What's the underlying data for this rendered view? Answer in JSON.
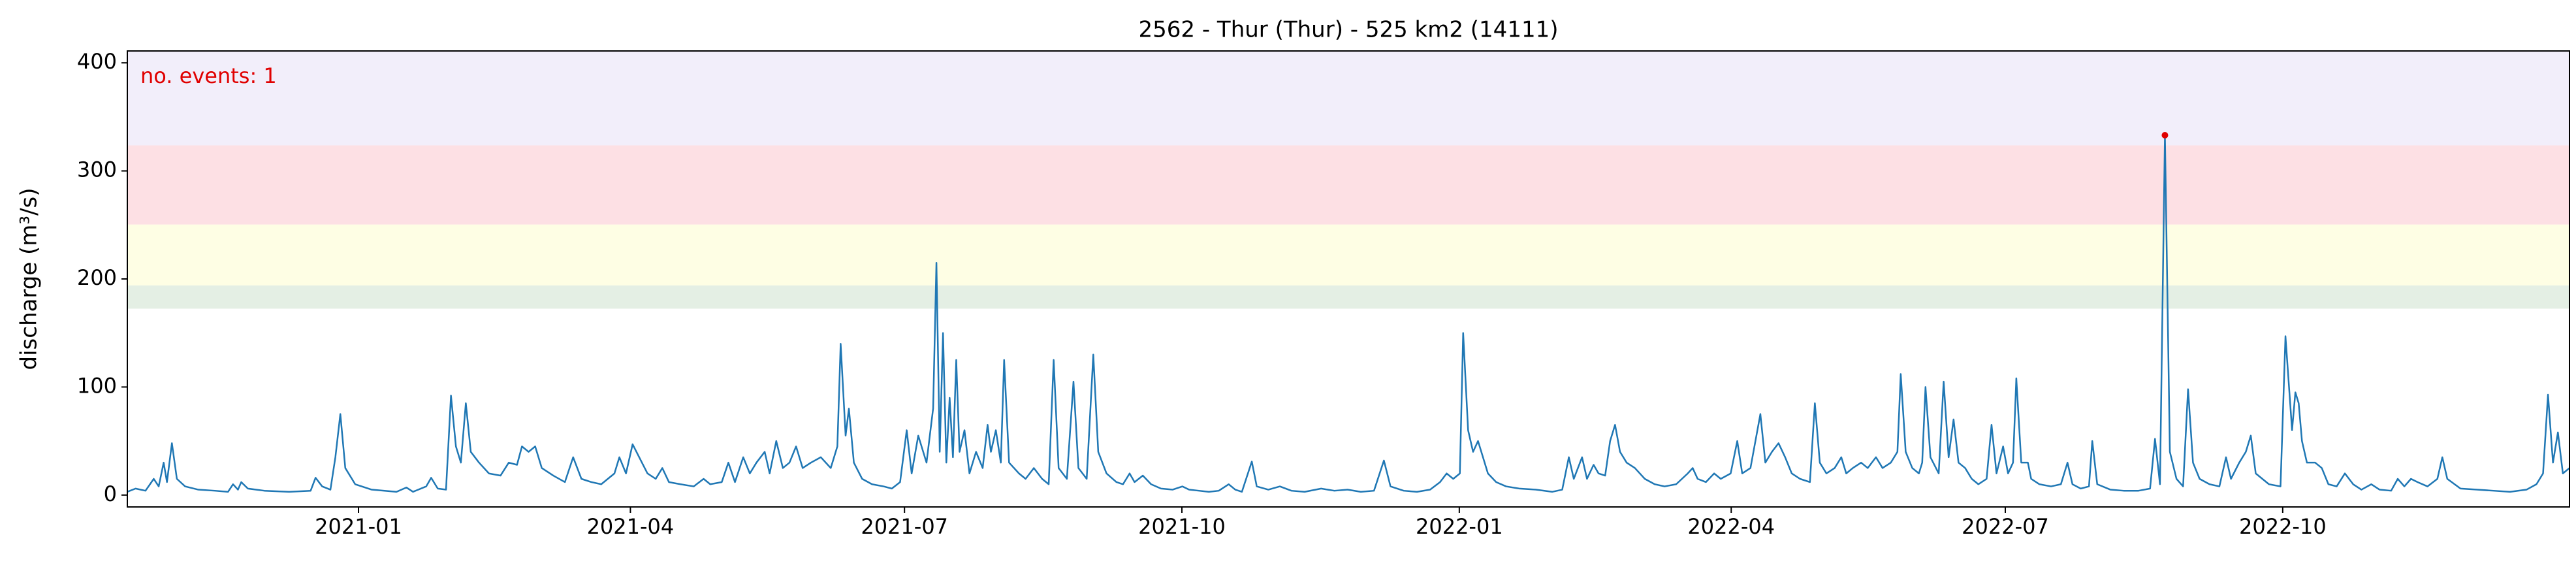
{
  "chart_data": {
    "type": "line",
    "title": "2562 - Thur (Thur) - 525 km2 (14111)",
    "y_label": "discharge (m³/s)",
    "annotation": "no. events: 1",
    "color": "#1f77b4",
    "xlim": [
      2020.79,
      2023.0085
    ],
    "ylim": [
      -11,
      411
    ],
    "yticks": [
      0,
      100,
      200,
      300,
      400
    ],
    "xticks": [
      {
        "value": 2021.0,
        "label": "2021-01"
      },
      {
        "value": 2021.247,
        "label": "2021-04"
      },
      {
        "value": 2021.496,
        "label": "2021-07"
      },
      {
        "value": 2021.748,
        "label": "2021-10"
      },
      {
        "value": 2022.0,
        "label": "2022-01"
      },
      {
        "value": 2022.247,
        "label": "2022-04"
      },
      {
        "value": 2022.496,
        "label": "2022-07"
      },
      {
        "value": 2022.748,
        "label": "2022-10"
      }
    ],
    "bands": [
      {
        "from": 172.5,
        "to": 194,
        "color": "#e4efe4"
      },
      {
        "from": 194,
        "to": 250.4,
        "color": "#fefee4"
      },
      {
        "from": 250.4,
        "to": 323.7,
        "color": "#fde0e4"
      },
      {
        "from": 323.7,
        "to": 411,
        "color": "#f2eefa"
      }
    ],
    "events": {
      "x": [
        2022.641
      ],
      "values": [
        333
      ],
      "color": "#e00000"
    },
    "x": [
      2020.79,
      2020.7975,
      2020.8065,
      2020.814,
      2020.8185,
      2020.823,
      2020.826,
      2020.8305,
      2020.835,
      2020.8425,
      2020.8545,
      2020.8695,
      2020.8815,
      2020.886,
      2020.8905,
      2020.8935,
      2020.8995,
      2020.9145,
      2020.937,
      2020.9565,
      2020.961,
      2020.967,
      2020.9745,
      2020.979,
      2020.9835,
      2020.988,
      2020.997,
      2021.012,
      2021.0345,
      2021.0435,
      2021.0495,
      2021.0615,
      2021.066,
      2021.072,
      2021.0795,
      2021.084,
      2021.0885,
      2021.093,
      2021.0975,
      2021.102,
      2021.1095,
      2021.1185,
      2021.129,
      2021.1365,
      2021.144,
      2021.1485,
      2021.1545,
      2021.1605,
      2021.1665,
      2021.177,
      2021.1875,
      2021.195,
      2021.2025,
      2021.2115,
      2021.2205,
      2021.2325,
      2021.237,
      2021.243,
      2021.249,
      2021.255,
      2021.2625,
      2021.27,
      2021.276,
      2021.282,
      2021.2925,
      2021.3045,
      2021.3135,
      2021.3195,
      2021.33,
      2021.336,
      2021.342,
      2021.3495,
      2021.3555,
      2021.3615,
      2021.369,
      2021.3735,
      2021.3795,
      2021.3855,
      2021.3915,
      2021.3975,
      2021.4035,
      2021.411,
      2021.42,
      2021.429,
      2021.435,
      2021.438,
      2021.4425,
      2021.4455,
      2021.45,
      2021.4575,
      2021.4665,
      2021.477,
      2021.4845,
      2021.492,
      2021.498,
      2021.5025,
      2021.5085,
      2021.516,
      2021.522,
      2021.525,
      2021.528,
      2021.531,
      2021.534,
      2021.537,
      2021.54,
      2021.543,
      2021.546,
      2021.5505,
      2021.555,
      2021.561,
      2021.567,
      2021.5715,
      2021.5745,
      2021.579,
      2021.5835,
      2021.5865,
      2021.591,
      2021.6,
      2021.606,
      2021.6135,
      2021.621,
      2021.627,
      2021.6315,
      2021.636,
      2021.6435,
      2021.6495,
      2021.654,
      2021.6615,
      2021.6675,
      2021.672,
      2021.6795,
      2021.6885,
      2021.6945,
      2021.7005,
      2021.705,
      2021.7125,
      2021.72,
      2021.729,
      2021.7395,
      2021.7485,
      2021.7545,
      2021.7635,
      2021.7725,
      2021.7815,
      2021.7905,
      2021.7965,
      2021.8025,
      2021.8115,
      2021.816,
      2021.8265,
      2021.837,
      2021.8475,
      2021.8595,
      2021.8745,
      2021.8865,
      2021.8985,
      2021.9105,
      2021.9225,
      2021.9315,
      2021.9375,
      2021.9495,
      2021.9615,
      2021.9735,
      2021.9825,
      2021.9885,
      2021.9945,
      2022.0005,
      2022.0035,
      2022.008,
      2022.0125,
      2022.017,
      2022.0215,
      2022.026,
      2022.0335,
      2022.0425,
      2022.0545,
      2022.0695,
      2022.0845,
      2022.0935,
      2022.0995,
      2022.104,
      2022.1115,
      2022.116,
      2022.122,
      2022.1265,
      2022.1325,
      2022.137,
      2022.1415,
      2022.146,
      2022.152,
      2022.1595,
      2022.1685,
      2022.1775,
      2022.1865,
      2022.197,
      2022.2075,
      2022.212,
      2022.2165,
      2022.224,
      2022.2315,
      2022.2375,
      2022.2465,
      2022.2525,
      2022.257,
      2022.2645,
      2022.2735,
      2022.278,
      2022.284,
      2022.29,
      2022.296,
      2022.302,
      2022.3095,
      2022.3185,
      2022.323,
      2022.3275,
      2022.3335,
      2022.341,
      2022.347,
      2022.3515,
      2022.3575,
      2022.365,
      2022.371,
      2022.3785,
      2022.3845,
      2022.392,
      2022.398,
      2022.401,
      2022.4055,
      2022.4115,
      2022.4175,
      2022.4205,
      2022.4235,
      2022.428,
      2022.4355,
      2022.44,
      2022.4445,
      2022.449,
      2022.4535,
      2022.4595,
      2022.4655,
      2022.4715,
      2022.479,
      2022.4835,
      2022.488,
      2022.494,
      2022.4985,
      2022.503,
      2022.506,
      2022.5105,
      2022.5165,
      2022.5195,
      2022.527,
      2022.5375,
      2022.5465,
      2022.5525,
      2022.557,
      2022.5645,
      2022.572,
      2022.575,
      2022.5795,
      2022.5915,
      2022.6035,
      2022.617,
      2022.6275,
      2022.632,
      2022.6365,
      2022.641,
      2022.6455,
      2022.6515,
      2022.6575,
      2022.662,
      2022.6665,
      2022.6725,
      2022.6815,
      2022.6905,
      2022.6965,
      2022.701,
      2022.7085,
      2022.7145,
      2022.719,
      2022.7235,
      2022.7295,
      2022.7355,
      2022.746,
      2022.7505,
      2022.7565,
      2022.7595,
      2022.7625,
      2022.7655,
      2022.77,
      2022.7775,
      2022.7835,
      2022.7895,
      2022.797,
      2022.8045,
      2022.812,
      2022.8195,
      2022.8285,
      2022.836,
      2022.8465,
      2022.8525,
      2022.8585,
      2022.8645,
      2022.8705,
      2022.8795,
      2022.8885,
      2022.893,
      2022.8975,
      2022.9095,
      2022.9245,
      2022.9395,
      2022.9545,
      2022.9695,
      2022.9785,
      2022.9845,
      2022.989,
      2022.9935,
      2022.998,
      2023.0025,
      2023.0085
    ],
    "values": [
      3,
      6,
      4,
      15,
      8,
      30,
      12,
      48,
      15,
      8,
      5,
      4,
      3,
      10,
      5,
      12,
      6,
      4,
      3,
      4,
      16,
      8,
      5,
      35,
      75,
      25,
      10,
      5,
      3,
      7,
      3,
      8,
      16,
      6,
      5,
      92,
      45,
      30,
      85,
      40,
      30,
      20,
      18,
      30,
      28,
      45,
      40,
      45,
      25,
      18,
      12,
      35,
      15,
      12,
      10,
      20,
      35,
      20,
      47,
      35,
      20,
      15,
      25,
      12,
      10,
      8,
      15,
      10,
      12,
      30,
      12,
      35,
      20,
      30,
      40,
      20,
      50,
      25,
      30,
      45,
      25,
      30,
      35,
      25,
      45,
      140,
      55,
      80,
      30,
      15,
      10,
      8,
      6,
      12,
      60,
      20,
      55,
      30,
      80,
      215,
      40,
      150,
      30,
      90,
      35,
      125,
      40,
      60,
      20,
      40,
      25,
      65,
      40,
      60,
      30,
      125,
      30,
      20,
      15,
      25,
      15,
      10,
      125,
      25,
      15,
      105,
      25,
      15,
      130,
      40,
      20,
      12,
      10,
      20,
      12,
      18,
      10,
      6,
      5,
      8,
      5,
      4,
      3,
      4,
      10,
      5,
      3,
      31,
      8,
      5,
      8,
      4,
      3,
      6,
      4,
      5,
      3,
      4,
      32,
      8,
      4,
      3,
      5,
      12,
      20,
      15,
      20,
      150,
      60,
      40,
      50,
      35,
      20,
      12,
      8,
      6,
      5,
      3,
      5,
      35,
      15,
      35,
      15,
      28,
      20,
      18,
      50,
      65,
      40,
      30,
      25,
      15,
      10,
      8,
      10,
      20,
      25,
      15,
      12,
      20,
      15,
      20,
      50,
      20,
      25,
      75,
      30,
      40,
      48,
      35,
      20,
      15,
      12,
      85,
      30,
      20,
      25,
      35,
      20,
      25,
      30,
      25,
      35,
      25,
      30,
      40,
      112,
      40,
      25,
      20,
      30,
      100,
      35,
      20,
      105,
      35,
      70,
      30,
      25,
      15,
      10,
      15,
      65,
      20,
      45,
      20,
      30,
      108,
      30,
      30,
      15,
      10,
      8,
      10,
      30,
      10,
      6,
      8,
      50,
      10,
      5,
      4,
      4,
      6,
      52,
      10,
      333,
      40,
      15,
      8,
      98,
      30,
      15,
      10,
      8,
      35,
      15,
      30,
      40,
      55,
      20,
      15,
      10,
      8,
      147,
      60,
      95,
      85,
      50,
      30,
      30,
      25,
      10,
      8,
      20,
      10,
      5,
      10,
      5,
      4,
      15,
      8,
      15,
      12,
      8,
      15,
      35,
      15,
      6,
      5,
      4,
      3,
      5,
      10,
      20,
      93,
      30,
      58,
      20,
      25
    ]
  }
}
